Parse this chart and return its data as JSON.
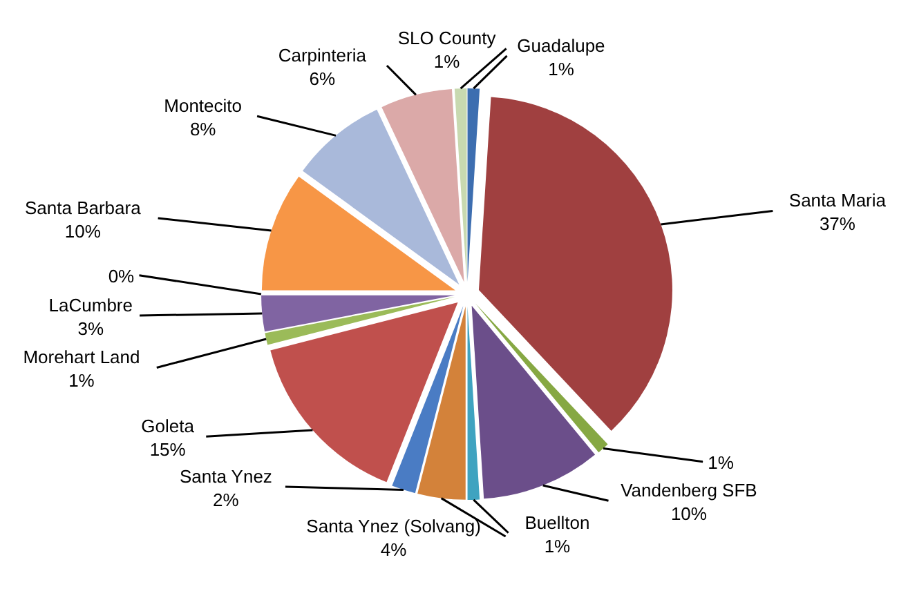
{
  "chart_data": {
    "type": "pie",
    "categories": [
      "Guadalupe",
      "Santa Maria",
      null,
      "Vandenberg SFB",
      "Buellton",
      "Santa Ynez (Solvang)",
      "Santa Ynez",
      "Goleta",
      "Morehart Land",
      "LaCumbre",
      null,
      "Santa Barbara",
      "Montecito",
      "Carpinteria",
      "SLO County"
    ],
    "values": [
      1,
      37,
      1,
      10,
      1,
      4,
      2,
      15,
      1,
      3,
      0,
      10,
      8,
      6,
      1
    ],
    "value_labels": [
      "1%",
      "37%",
      "1%",
      "10%",
      "1%",
      "4%",
      "2%",
      "15%",
      "1%",
      "3%",
      "0%",
      "10%",
      "8%",
      "6%",
      "1%"
    ],
    "colors": [
      "#3d6eb0",
      "#a04040",
      "#86a843",
      "#6b4e8a",
      "#3fa3c0",
      "#d3823a",
      "#4a7cc4",
      "#c0504d",
      "#9bbb59",
      "#8064a2",
      "#4bacc6",
      "#f79646",
      "#a9b9da",
      "#dba9a8",
      "#c8d9b0"
    ]
  }
}
